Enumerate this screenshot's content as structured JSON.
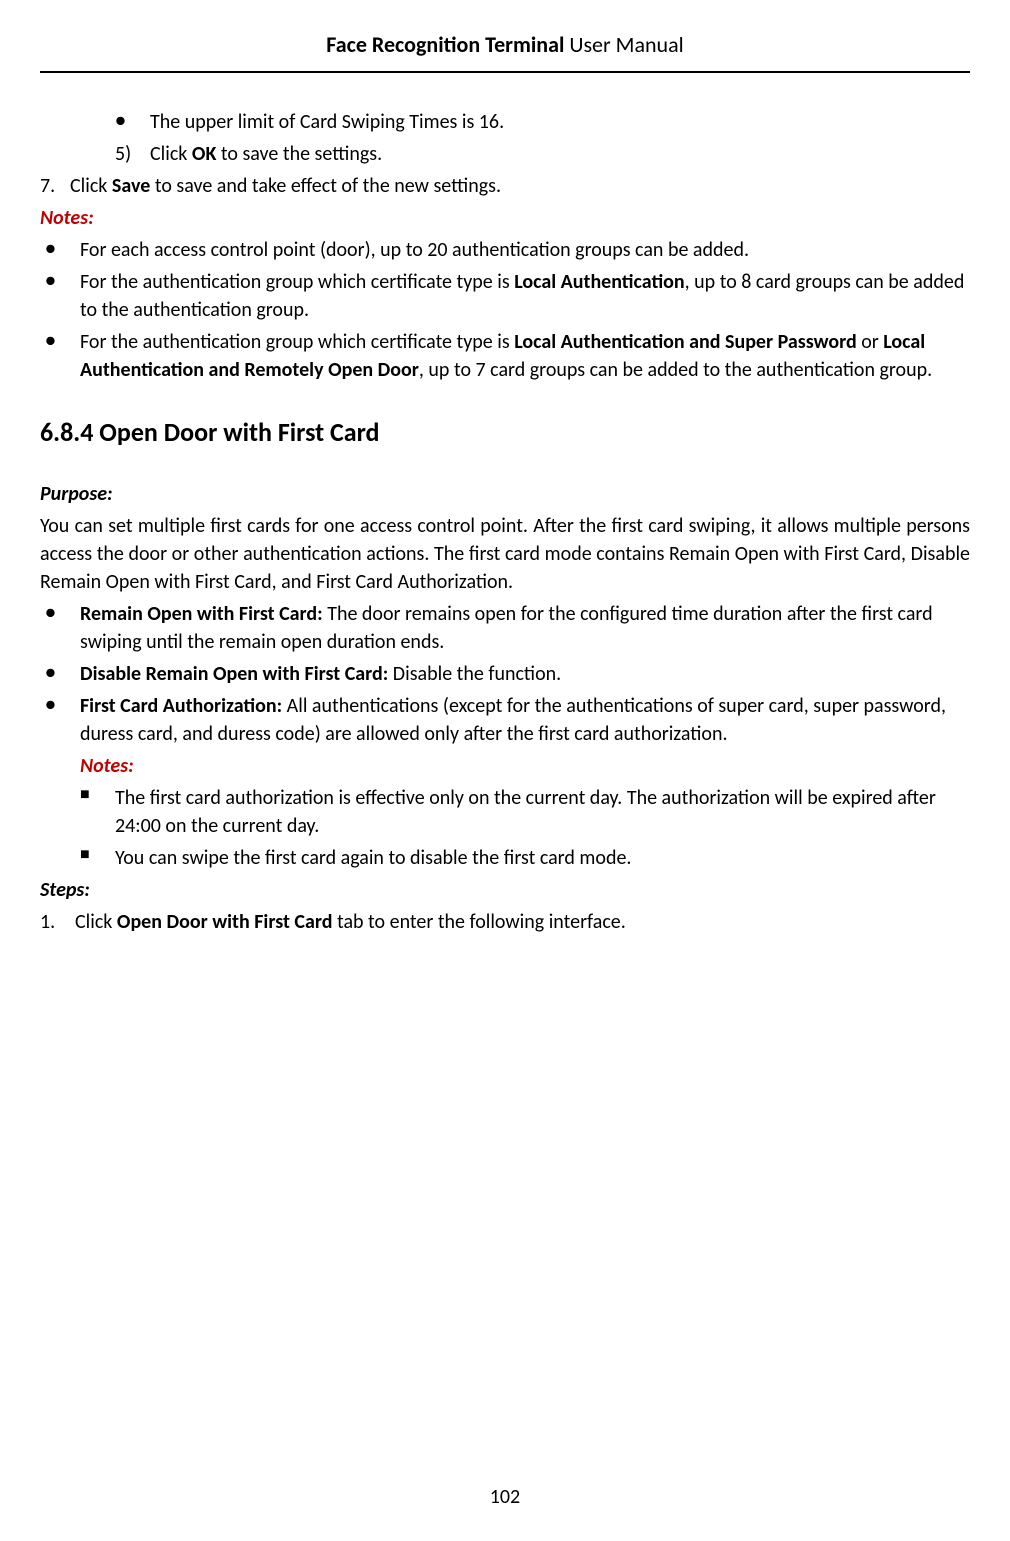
{
  "header": {
    "title_bold": "Face Recognition Terminal",
    "title_normal": " User Manual"
  },
  "content": {
    "bullet_upper_limit": "The upper limit of Card Swiping Times is 16.",
    "step5_num": "5)",
    "step5_pre": "Click ",
    "step5_bold": "OK",
    "step5_post": " to save the settings.",
    "step7_num": "7.",
    "step7_pre": "Click ",
    "step7_bold": "Save",
    "step7_post": " to save and take effect of the new settings.",
    "notes_label": "Notes:",
    "note1": "For each access control point (door), up to 20 authentication groups can be added.",
    "note2_pre": "For the authentication group which certificate type is ",
    "note2_bold": "Local Authentication",
    "note2_post": ", up to 8 card groups can be added to the authentication group.",
    "note3_pre": "For the authentication group which certificate type is ",
    "note3_bold1": "Local Authentication and Super Password",
    "note3_mid": " or ",
    "note3_bold2": "Local Authentication and Remotely Open Door",
    "note3_post": ", up to 7 card groups can be added to the authentication group.",
    "section_heading": "6.8.4   Open Door with First Card",
    "purpose_label": "Purpose:",
    "purpose_text": "You can set multiple first cards for one access control point. After the first card swiping, it allows multiple persons access the door or other authentication actions. The first card mode contains Remain Open with First Card, Disable Remain Open with First Card, and First Card Authorization.",
    "mode1_bold": "Remain Open with First Card:",
    "mode1_text": " The door remains open for the configured time duration after the first card swiping until the remain open duration ends.",
    "mode2_bold": "Disable Remain Open with First Card:",
    "mode2_text": " Disable the function.",
    "mode3_bold": "First Card Authorization:",
    "mode3_text": " All authentications (except for the authentications of super card, super password, duress card, and duress code) are allowed only after the first card authorization.",
    "sub_notes_label": "Notes:",
    "sub_note1": "The first card authorization is effective only on the current day. The authorization will be expired after 24:00 on the current day.",
    "sub_note2": "You can swipe the first card again to disable the first card mode.",
    "steps_label": "Steps:",
    "step1_num": "1.",
    "step1_pre": "Click ",
    "step1_bold": "Open Door with First Card",
    "step1_post": " tab to enter the following interface."
  },
  "page_number": "102",
  "colors": {
    "text": "#000000",
    "notes_red": "#c00000",
    "background": "#ffffff"
  },
  "typography": {
    "body_fontsize": 20,
    "heading_fontsize": 26,
    "header_fontsize": 22
  }
}
